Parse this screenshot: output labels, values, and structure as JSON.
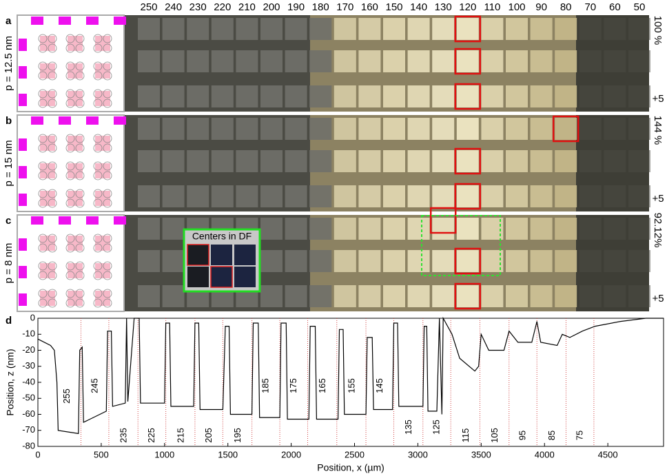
{
  "doses": [
    250,
    240,
    230,
    220,
    210,
    200,
    190,
    180,
    170,
    160,
    150,
    140,
    130,
    120,
    110,
    100,
    90,
    80,
    70,
    60,
    50
  ],
  "panels": [
    {
      "label": "a",
      "pitch": "p = 12.5 nm",
      "scale": "100 %",
      "offset": "+5"
    },
    {
      "label": "b",
      "pitch": "p = 15 nm",
      "scale": "144 %",
      "offset": "+5"
    },
    {
      "label": "c",
      "pitch": "p = 8 nm",
      "scale": "92.12%",
      "offset": "+5"
    }
  ],
  "inset": "Centers in DF",
  "chart_data": {
    "type": "line",
    "label": "d",
    "xlabel": "Position, x (µm)",
    "ylabel": "Position, z (nm)",
    "xlim": [
      0,
      4940
    ],
    "ylim": [
      -80,
      0
    ],
    "xticks": [
      0,
      500,
      1000,
      1500,
      2000,
      2500,
      3000,
      3500,
      4000,
      4500
    ],
    "yticks": [
      0,
      -10,
      -20,
      -30,
      -40,
      -50,
      -60,
      -70,
      -80
    ],
    "color": "#000000",
    "marker_color": "#d04040",
    "markers": [
      340,
      560,
      790,
      1010,
      1240,
      1460,
      1690,
      1910,
      2130,
      2360,
      2590,
      2810,
      3040,
      3260,
      3490,
      3720,
      3940,
      4170,
      4390
    ],
    "annotations": [
      255,
      245,
      235,
      225,
      215,
      205,
      195,
      185,
      175,
      165,
      155,
      145,
      135,
      125,
      115,
      105,
      95,
      85,
      75
    ],
    "x": [
      0,
      100,
      130,
      150,
      160,
      320,
      330,
      350,
      360,
      540,
      550,
      580,
      590,
      690,
      700,
      710,
      760,
      800,
      810,
      1000,
      1010,
      1040,
      1050,
      1230,
      1240,
      1270,
      1280,
      1460,
      1480,
      1510,
      1520,
      1690,
      1700,
      1740,
      1750,
      1910,
      1920,
      1960,
      1970,
      2140,
      2150,
      2190,
      2200,
      2370,
      2380,
      2410,
      2420,
      2590,
      2600,
      2640,
      2650,
      2800,
      2810,
      2840,
      2850,
      3040,
      3050,
      3070,
      3080,
      3150,
      3170,
      3190,
      3200,
      3270,
      3330,
      3450,
      3480,
      3500,
      3560,
      3680,
      3720,
      3790,
      3900,
      3940,
      3970,
      4100,
      4140,
      4200,
      4300,
      4400,
      4600,
      4800,
      4940
    ],
    "values": [
      -13,
      -17,
      -20,
      -40,
      -70,
      -72,
      -20,
      -18,
      -65,
      -58,
      -8,
      -8,
      -55,
      -53,
      0,
      -52,
      0,
      0,
      -53,
      -53,
      -3,
      -3,
      -55,
      -55,
      -3,
      -3,
      -57,
      -57,
      -5,
      -5,
      -60,
      -60,
      -3,
      -3,
      -62,
      -62,
      -3,
      -3,
      -63,
      -63,
      -5,
      -5,
      -63,
      -63,
      -7,
      -7,
      -60,
      -60,
      -12,
      -12,
      -57,
      -57,
      -3,
      -3,
      -55,
      -55,
      -5,
      -5,
      -58,
      -58,
      0,
      -60,
      0,
      -10,
      -25,
      -33,
      -30,
      -10,
      -20,
      -20,
      -8,
      -15,
      -15,
      -2,
      -15,
      -17,
      -10,
      -12,
      -8,
      -5,
      -2,
      0,
      0
    ]
  }
}
